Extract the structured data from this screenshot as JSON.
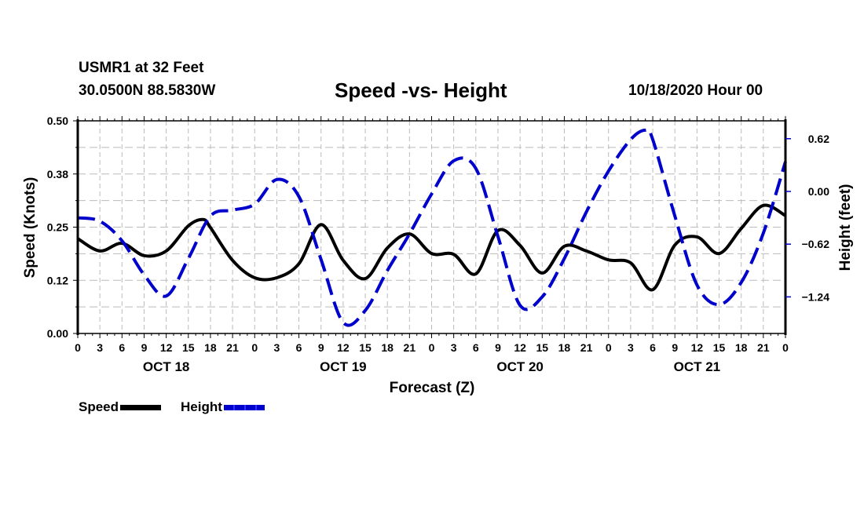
{
  "header": {
    "station": "USMR1 at 32 Feet",
    "coords": "30.0500N 88.5830W",
    "title": "Speed -vs- Height",
    "datestamp": "10/18/2020 Hour 00"
  },
  "legend": [
    {
      "label": "Speed",
      "color": "#000000",
      "style": "solid"
    },
    {
      "label": "Height",
      "color": "#0000cc",
      "style": "dashed"
    }
  ],
  "chart_data": {
    "type": "line",
    "title": "Speed -vs- Height",
    "xlabel": "Forecast (Z)",
    "ylabel": "Speed (Knots)",
    "y2label": "Height (feet)",
    "grid": true,
    "legend_position": "bottom-left",
    "x_hours_range": [
      0,
      96
    ],
    "x_tick_labels": [
      "0",
      "3",
      "6",
      "9",
      "12",
      "15",
      "18",
      "21",
      "0",
      "3",
      "6",
      "9",
      "12",
      "15",
      "18",
      "21",
      "0",
      "3",
      "6",
      "9",
      "12",
      "15",
      "18",
      "21",
      "0",
      "3",
      "6",
      "9",
      "12",
      "15",
      "18",
      "21",
      "0"
    ],
    "day_labels": [
      {
        "label": "OCT 18",
        "hour": 12
      },
      {
        "label": "OCT 19",
        "hour": 36
      },
      {
        "label": "OCT 20",
        "hour": 60
      },
      {
        "label": "OCT 21",
        "hour": 84
      }
    ],
    "ylim": [
      0,
      0.5
    ],
    "y_tick_values": [
      0.0,
      0.125,
      0.25,
      0.375,
      0.5
    ],
    "y_tick_labels": [
      "0.00",
      "0.12",
      "0.25",
      "0.38",
      "0.50"
    ],
    "y2lim": [
      -1.67,
      0.83
    ],
    "y2_tick_values": [
      0.62,
      0.0,
      -0.62,
      -1.24
    ],
    "y2_tick_labels": [
      "0.62",
      "0.00",
      "-0.62",
      "-1.24"
    ],
    "series": [
      {
        "name": "Speed",
        "axis": "left",
        "color": "#000000",
        "dashed": false,
        "x": [
          0,
          3,
          6,
          9,
          12,
          15,
          17,
          18,
          21,
          24,
          27,
          30,
          33,
          36,
          39,
          42,
          45,
          48,
          51,
          54,
          57,
          60,
          63,
          66,
          69,
          72,
          75,
          78,
          81,
          84,
          87,
          90,
          93,
          96
        ],
        "values": [
          0.223,
          0.194,
          0.212,
          0.183,
          0.194,
          0.253,
          0.268,
          0.249,
          0.172,
          0.131,
          0.131,
          0.164,
          0.256,
          0.172,
          0.129,
          0.201,
          0.234,
          0.188,
          0.186,
          0.14,
          0.242,
          0.207,
          0.142,
          0.205,
          0.194,
          0.173,
          0.166,
          0.103,
          0.208,
          0.227,
          0.188,
          0.247,
          0.301,
          0.277
        ]
      },
      {
        "name": "Height",
        "axis": "right",
        "color": "#0000cc",
        "dashed": true,
        "x": [
          0,
          3,
          6,
          9,
          12,
          15,
          18,
          21,
          24,
          27,
          30,
          33,
          36,
          39,
          42,
          45,
          48,
          51,
          54,
          57,
          60,
          63,
          66,
          69,
          72,
          75,
          77,
          78,
          81,
          84,
          87,
          90,
          93,
          96
        ],
        "values": [
          -0.31,
          -0.35,
          -0.58,
          -0.98,
          -1.23,
          -0.79,
          -0.29,
          -0.22,
          -0.15,
          0.14,
          -0.06,
          -0.8,
          -1.54,
          -1.4,
          -0.93,
          -0.5,
          -0.03,
          0.36,
          0.27,
          -0.53,
          -1.34,
          -1.24,
          -0.79,
          -0.24,
          0.24,
          0.61,
          0.72,
          0.61,
          -0.29,
          -1.1,
          -1.33,
          -1.07,
          -0.49,
          0.35
        ]
      }
    ]
  }
}
